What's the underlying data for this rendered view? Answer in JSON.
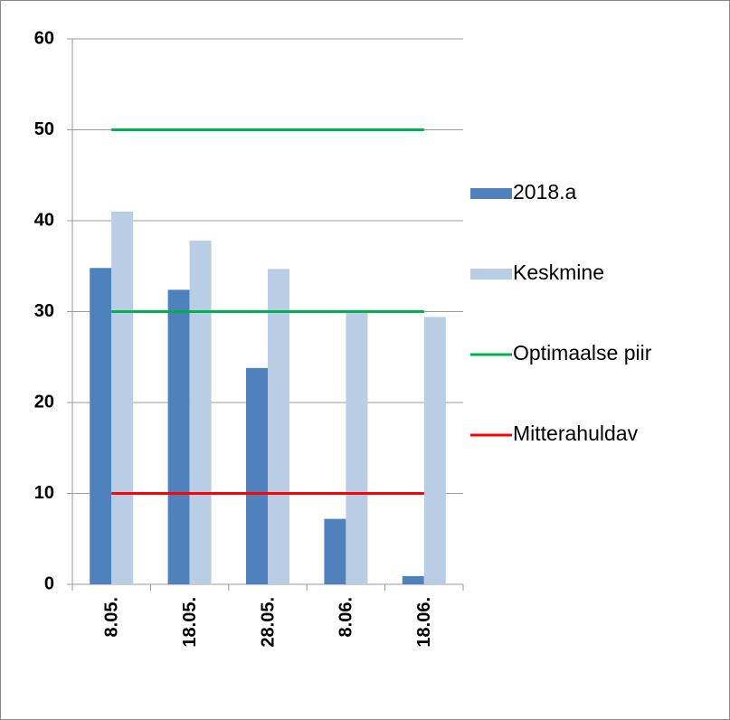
{
  "chart_data": {
    "type": "bar",
    "categories": [
      "8.05.",
      "18.05.",
      "28.05.",
      "8.06.",
      "18.06."
    ],
    "series": [
      {
        "name": "2018.a",
        "type": "bar",
        "color": "#4f81bd",
        "values": [
          34.8,
          32.4,
          23.8,
          7.2,
          0.9
        ]
      },
      {
        "name": "Keskmine",
        "type": "bar",
        "color": "#b9cde5",
        "values": [
          41,
          37.8,
          34.7,
          30,
          29.4
        ]
      },
      {
        "name": "Optimaalse piir",
        "type": "line",
        "color": "#00b050",
        "values": [
          50,
          50,
          50,
          50,
          50
        ]
      },
      {
        "name": "Optimaalse piir",
        "type": "line",
        "color": "#00b050",
        "values": [
          30,
          30,
          30,
          30,
          30
        ]
      },
      {
        "name": "Mitterahuldav",
        "type": "line",
        "color": "#ff0000",
        "values": [
          10,
          10,
          10,
          10,
          10
        ]
      }
    ],
    "ylim": [
      0,
      60
    ],
    "yticks": [
      0,
      10,
      20,
      30,
      40,
      50,
      60
    ],
    "grid": true,
    "legend": "right"
  }
}
